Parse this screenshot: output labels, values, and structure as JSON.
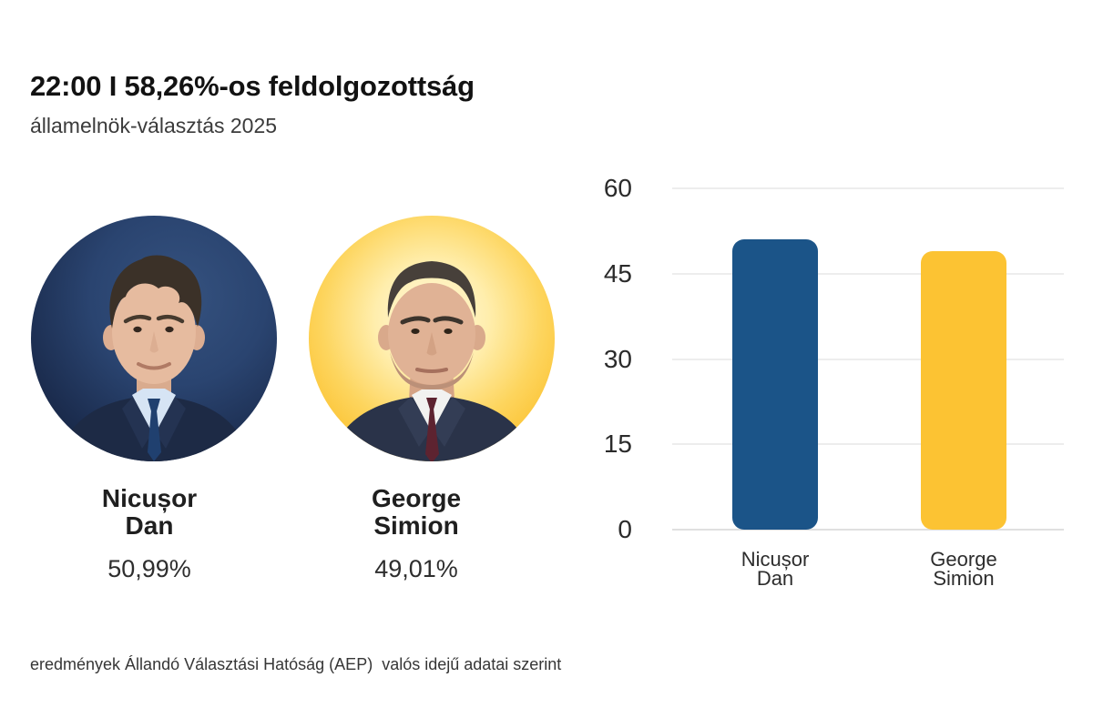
{
  "header": {
    "title": "22:00 I 58,26%-os feldolgozottság",
    "subtitle": "államelnök-választás 2025"
  },
  "candidates": [
    {
      "id": "nicusor-dan",
      "name_line1": "Nicușor",
      "name_line2": "Dan",
      "percent": "50,99%",
      "color": "#1b5488",
      "photo_background": "dark-navy-blue"
    },
    {
      "id": "george-simion",
      "name_line1": "George",
      "name_line2": "Simion",
      "percent": "49,01%",
      "color": "#fcc333",
      "photo_background": "yellow-glow"
    }
  ],
  "chart_data": {
    "type": "bar",
    "categories": [
      "Nicușor Dan",
      "George Simion"
    ],
    "values": [
      50.99,
      49.01
    ],
    "bar_colors": [
      "#1b5488",
      "#fcc333"
    ],
    "title": "",
    "xlabel": "",
    "ylabel": "",
    "ylim": [
      0,
      60
    ],
    "yticks": [
      0,
      15,
      30,
      45,
      60
    ],
    "grid": true,
    "legend": false
  },
  "footer": {
    "source": "eredmények Állandó Választási Hatóság (AEP)  valós idejű adatai szerint"
  },
  "colors": {
    "blue": "#1b5488",
    "yellow": "#fcc333",
    "gridline": "#ededed",
    "background": "#ffffff"
  }
}
